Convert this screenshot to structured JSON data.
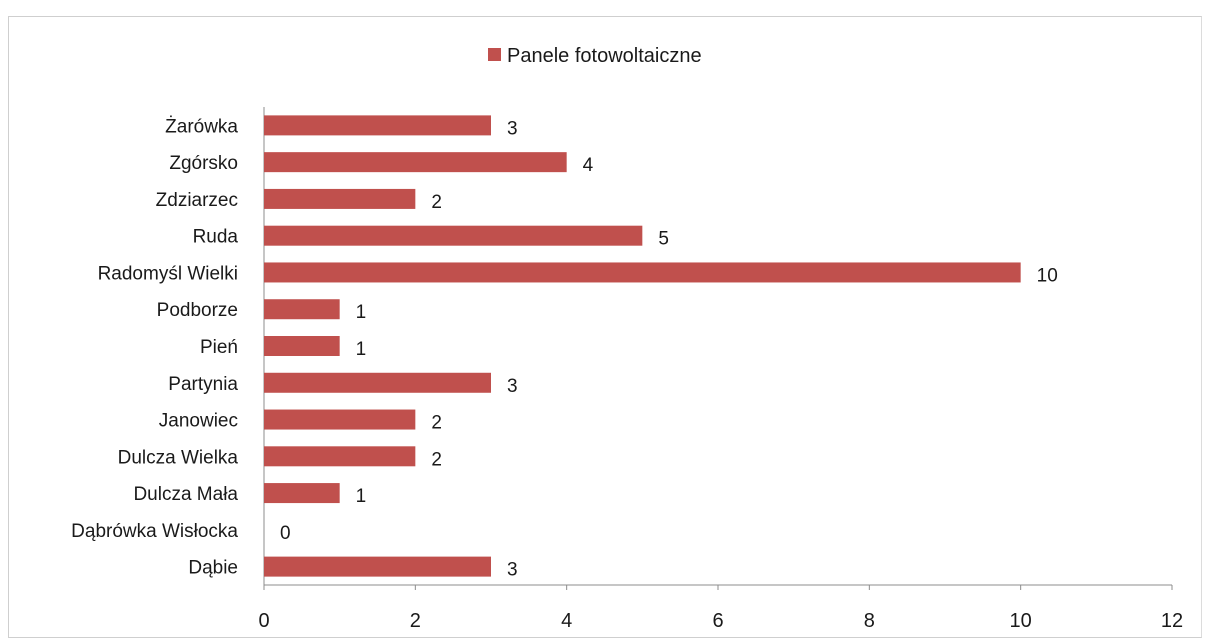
{
  "chart_data": {
    "type": "bar",
    "orientation": "horizontal",
    "categories": [
      "Żarówka",
      "Zgórsko",
      "Zdziarzec",
      "Ruda",
      "Radomyśl Wielki",
      "Podborze",
      "Pień",
      "Partynia",
      "Janowiec",
      "Dulcza Wielka",
      "Dulcza Mała",
      "Dąbrówka Wisłocka",
      "Dąbie"
    ],
    "series": [
      {
        "name": "Panele fotowoltaiczne",
        "values": [
          3,
          4,
          2,
          5,
          10,
          1,
          1,
          3,
          2,
          2,
          1,
          0,
          3
        ],
        "color": "#c0504d"
      }
    ],
    "xlim": [
      0,
      12
    ],
    "xticks": [
      "0",
      "2",
      "4",
      "6",
      "8",
      "10",
      "12"
    ],
    "legend": "top-center",
    "grid": false,
    "data_labels": true
  }
}
